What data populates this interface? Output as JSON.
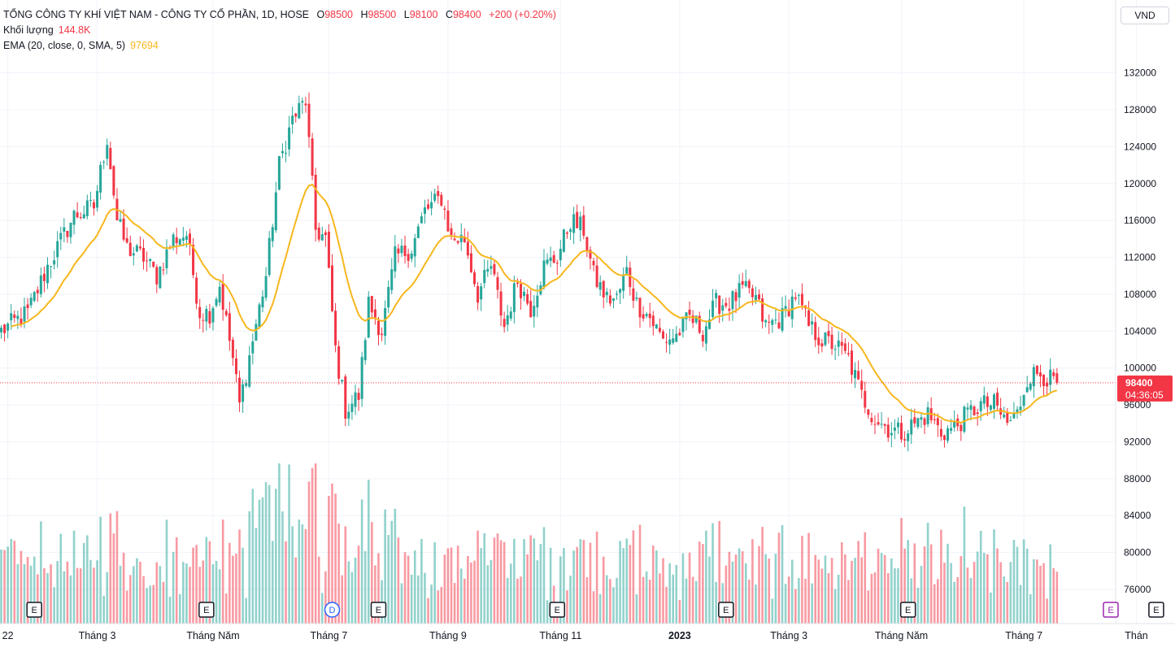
{
  "legend": {
    "symbol": "TỔNG CÔNG TY KHÍ VIỆT NAM - CÔNG TY CỔ PHẦN, 1D, HOSE",
    "open_label": "O",
    "open": "98500",
    "high_label": "H",
    "high": "98500",
    "low_label": "L",
    "low": "98100",
    "close_label": "C",
    "close": "98400",
    "change": "+200 (+0.20%)",
    "volume_label": "Khối lượng",
    "volume": "144.8K",
    "ema_label": "EMA (20, close, 0, SMA, 5)",
    "ema": "97694"
  },
  "currency_button": "VND",
  "price_badge": {
    "price": "98400",
    "countdown": "04:36:05"
  },
  "colors": {
    "up": "#26a69a",
    "down": "#f23645",
    "ema": "#f7b71d",
    "grid": "#f0f3fa",
    "axis_text": "#131722"
  },
  "markers": [
    {
      "label": "E",
      "x_index": 10
    },
    {
      "label": "E",
      "x_index": 62
    },
    {
      "label": "D",
      "x_index": 100
    },
    {
      "label": "E",
      "x_index": 114
    },
    {
      "label": "E",
      "x_index": 168
    },
    {
      "label": "E",
      "x_index": 219
    },
    {
      "label": "E",
      "x_index": 274
    },
    {
      "label": "E",
      "x_index": 349
    }
  ],
  "chart_data": {
    "type": "candlestick",
    "xlabel": "",
    "ylabel": "",
    "ylim": [
      72300,
      136900
    ],
    "price_ticks": [
      "132000",
      "128000",
      "124000",
      "120000",
      "116000",
      "112000",
      "108000",
      "104000",
      "100000",
      "96000",
      "92000",
      "88000",
      "84000",
      "80000",
      "76000"
    ],
    "time_labels": [
      {
        "label": "22",
        "x_index": 2
      },
      {
        "label": "Tháng 3",
        "x_index": 29
      },
      {
        "label": "Tháng Năm",
        "x_index": 64
      },
      {
        "label": "Tháng 7",
        "x_index": 99
      },
      {
        "label": "Tháng 9",
        "x_index": 135
      },
      {
        "label": "Tháng 11",
        "x_index": 169
      },
      {
        "label": "2023",
        "x_index": 205
      },
      {
        "label": "Tháng 3",
        "x_index": 238
      },
      {
        "label": "Tháng Năm",
        "x_index": 272
      },
      {
        "label": "Tháng 7",
        "x_index": 309
      },
      {
        "label": "Thán",
        "x_index": 343
      }
    ],
    "close_anchors": [
      [
        0,
        104000
      ],
      [
        8,
        106000
      ],
      [
        14,
        111000
      ],
      [
        22,
        116500
      ],
      [
        28,
        117500
      ],
      [
        32,
        125000
      ],
      [
        35,
        116000
      ],
      [
        38,
        113000
      ],
      [
        43,
        112000
      ],
      [
        47,
        110000
      ],
      [
        52,
        114000
      ],
      [
        56,
        114500
      ],
      [
        60,
        106000
      ],
      [
        63,
        106000
      ],
      [
        66,
        109000
      ],
      [
        70,
        101000
      ],
      [
        72,
        96000
      ],
      [
        76,
        103000
      ],
      [
        80,
        110000
      ],
      [
        84,
        122000
      ],
      [
        88,
        127000
      ],
      [
        92,
        129000
      ],
      [
        95,
        115000
      ],
      [
        98,
        114000
      ],
      [
        101,
        102000
      ],
      [
        104,
        95500
      ],
      [
        108,
        97000
      ],
      [
        111,
        107000
      ],
      [
        115,
        104000
      ],
      [
        119,
        112000
      ],
      [
        124,
        113000
      ],
      [
        128,
        117000
      ],
      [
        133,
        118500
      ],
      [
        136,
        114000
      ],
      [
        140,
        114000
      ],
      [
        144,
        108000
      ],
      [
        148,
        111000
      ],
      [
        152,
        104500
      ],
      [
        156,
        109500
      ],
      [
        160,
        106500
      ],
      [
        164,
        111000
      ],
      [
        168,
        112000
      ],
      [
        172,
        116000
      ],
      [
        176,
        115000
      ],
      [
        179,
        110000
      ],
      [
        183,
        107500
      ],
      [
        186,
        107500
      ],
      [
        189,
        110500
      ],
      [
        192,
        107000
      ],
      [
        196,
        105500
      ],
      [
        200,
        103000
      ],
      [
        204,
        103500
      ],
      [
        208,
        105500
      ],
      [
        212,
        104000
      ],
      [
        216,
        107000
      ],
      [
        220,
        107000
      ],
      [
        224,
        108500
      ],
      [
        228,
        107500
      ],
      [
        231,
        104500
      ],
      [
        236,
        105500
      ],
      [
        240,
        108000
      ],
      [
        244,
        104500
      ],
      [
        248,
        103000
      ],
      [
        252,
        102500
      ],
      [
        256,
        101000
      ],
      [
        260,
        97000
      ],
      [
        264,
        94500
      ],
      [
        268,
        93500
      ],
      [
        272,
        93000
      ],
      [
        276,
        94000
      ],
      [
        280,
        95000
      ],
      [
        284,
        93000
      ],
      [
        288,
        93500
      ],
      [
        292,
        95000
      ],
      [
        296,
        96000
      ],
      [
        300,
        96000
      ],
      [
        304,
        94000
      ],
      [
        307,
        95000
      ],
      [
        310,
        99000
      ],
      [
        314,
        99500
      ],
      [
        318,
        98400
      ]
    ],
    "volume_ylim": [
      0,
      1000
    ],
    "last_close": 98400,
    "ema_last": 97694
  }
}
